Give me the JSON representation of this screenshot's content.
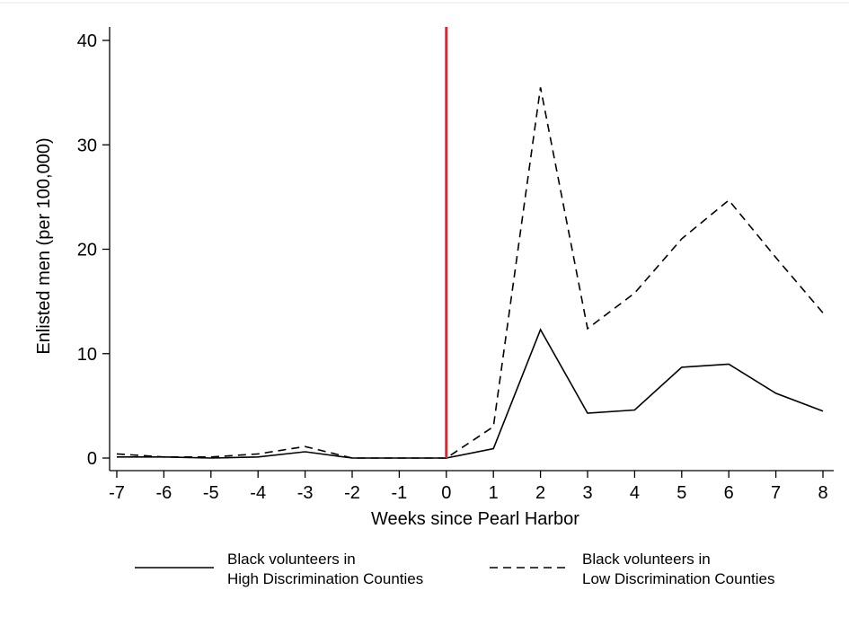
{
  "chart_data": {
    "type": "line",
    "title": "",
    "xlabel": "Weeks since Pearl Harbor",
    "ylabel": "Enlisted men (per 100,000)",
    "x": [
      -7,
      -6,
      -5,
      -4,
      -3,
      -2,
      -1,
      0,
      1,
      2,
      3,
      4,
      5,
      6,
      7,
      8
    ],
    "xlim": [
      -7,
      8
    ],
    "ylim": [
      0,
      40
    ],
    "yticks": [
      0,
      10,
      20,
      30,
      40
    ],
    "grid": false,
    "legend_position": "bottom",
    "reference_line": {
      "x": 0,
      "color": "#e8202a"
    },
    "series": [
      {
        "name": "Black volunteers in High Discrimination Counties",
        "legend_lines": [
          "Black volunteers in",
          "High Discrimination Counties"
        ],
        "style": "solid",
        "color": "#000000",
        "values": [
          0.1,
          0.1,
          0.0,
          0.1,
          0.6,
          0.0,
          0.0,
          0.0,
          0.9,
          12.3,
          4.3,
          4.6,
          8.7,
          9.0,
          6.2,
          4.5
        ]
      },
      {
        "name": "Black volunteers in Low Discrimination Counties",
        "legend_lines": [
          "Black volunteers in",
          "Low Discrimination Counties"
        ],
        "style": "dashed",
        "color": "#000000",
        "values": [
          0.4,
          0.1,
          0.1,
          0.4,
          1.1,
          0.0,
          0.0,
          0.0,
          3.0,
          35.5,
          12.4,
          15.8,
          21.0,
          24.7,
          19.2,
          13.9
        ]
      }
    ]
  }
}
